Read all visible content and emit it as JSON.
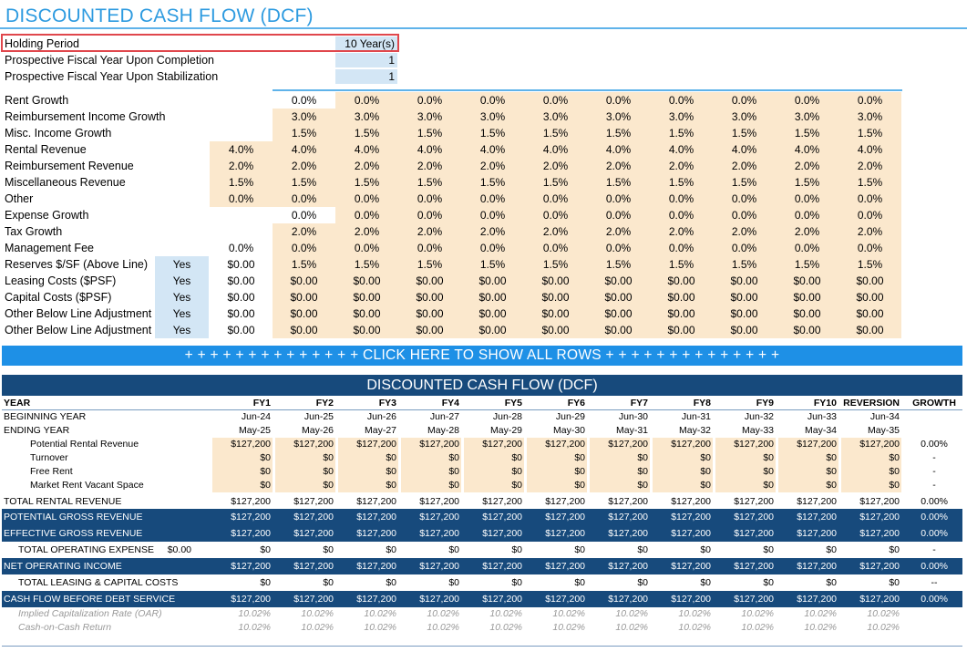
{
  "title": "DISCOUNTED CASH FLOW (DCF)",
  "params": [
    {
      "label": "Holding Period",
      "value": "10 Year(s)"
    },
    {
      "label": "Prospective Fiscal Year Upon Completion",
      "value": "1"
    },
    {
      "label": "Prospective Fiscal Year Upon Stabilization",
      "value": "1"
    }
  ],
  "assumptions": [
    {
      "label": "Rent Growth",
      "flag": "",
      "base": "",
      "vals": [
        "0.0%",
        "0.0%",
        "0.0%",
        "0.0%",
        "0.0%",
        "0.0%",
        "0.0%",
        "0.0%",
        "0.0%",
        "0.0%"
      ]
    },
    {
      "label": "Reimbursement Income Growth",
      "flag": "",
      "base": "",
      "vals": [
        "3.0%",
        "3.0%",
        "3.0%",
        "3.0%",
        "3.0%",
        "3.0%",
        "3.0%",
        "3.0%",
        "3.0%",
        "3.0%"
      ]
    },
    {
      "label": "Misc. Income Growth",
      "flag": "",
      "base": "",
      "vals": [
        "1.5%",
        "1.5%",
        "1.5%",
        "1.5%",
        "1.5%",
        "1.5%",
        "1.5%",
        "1.5%",
        "1.5%",
        "1.5%"
      ]
    },
    {
      "label": "Rental Revenue",
      "flag": "",
      "base": "4.0%",
      "vals": [
        "4.0%",
        "4.0%",
        "4.0%",
        "4.0%",
        "4.0%",
        "4.0%",
        "4.0%",
        "4.0%",
        "4.0%",
        "4.0%"
      ]
    },
    {
      "label": "Reimbursement Revenue",
      "flag": "",
      "base": "2.0%",
      "vals": [
        "2.0%",
        "2.0%",
        "2.0%",
        "2.0%",
        "2.0%",
        "2.0%",
        "2.0%",
        "2.0%",
        "2.0%",
        "2.0%"
      ]
    },
    {
      "label": "Miscellaneous Revenue",
      "flag": "",
      "base": "1.5%",
      "vals": [
        "1.5%",
        "1.5%",
        "1.5%",
        "1.5%",
        "1.5%",
        "1.5%",
        "1.5%",
        "1.5%",
        "1.5%",
        "1.5%"
      ]
    },
    {
      "label": "Other",
      "flag": "",
      "base": "0.0%",
      "vals": [
        "0.0%",
        "0.0%",
        "0.0%",
        "0.0%",
        "0.0%",
        "0.0%",
        "0.0%",
        "0.0%",
        "0.0%",
        "0.0%"
      ]
    },
    {
      "label": "Expense Growth",
      "flag": "",
      "base": "",
      "vals": [
        "0.0%",
        "0.0%",
        "0.0%",
        "0.0%",
        "0.0%",
        "0.0%",
        "0.0%",
        "0.0%",
        "0.0%",
        "0.0%"
      ]
    },
    {
      "label": "Tax Growth",
      "flag": "",
      "base": "",
      "vals": [
        "2.0%",
        "2.0%",
        "2.0%",
        "2.0%",
        "2.0%",
        "2.0%",
        "2.0%",
        "2.0%",
        "2.0%",
        "2.0%"
      ]
    },
    {
      "label": "Management Fee",
      "flag": "",
      "base": "0.0%",
      "vals": [
        "0.0%",
        "0.0%",
        "0.0%",
        "0.0%",
        "0.0%",
        "0.0%",
        "0.0%",
        "0.0%",
        "0.0%",
        "0.0%"
      ]
    },
    {
      "label": "Reserves $/SF (Above Line)",
      "flag": "Yes",
      "base": "$0.00",
      "vals": [
        "1.5%",
        "1.5%",
        "1.5%",
        "1.5%",
        "1.5%",
        "1.5%",
        "1.5%",
        "1.5%",
        "1.5%",
        "1.5%"
      ]
    },
    {
      "label": "Leasing Costs ($PSF)",
      "flag": "Yes",
      "base": "$0.00",
      "vals": [
        "$0.00",
        "$0.00",
        "$0.00",
        "$0.00",
        "$0.00",
        "$0.00",
        "$0.00",
        "$0.00",
        "$0.00",
        "$0.00"
      ]
    },
    {
      "label": "Capital Costs ($PSF)",
      "flag": "Yes",
      "base": "$0.00",
      "vals": [
        "$0.00",
        "$0.00",
        "$0.00",
        "$0.00",
        "$0.00",
        "$0.00",
        "$0.00",
        "$0.00",
        "$0.00",
        "$0.00"
      ]
    },
    {
      "label": "Other Below Line Adjustment",
      "flag": "Yes",
      "base": "$0.00",
      "vals": [
        "$0.00",
        "$0.00",
        "$0.00",
        "$0.00",
        "$0.00",
        "$0.00",
        "$0.00",
        "$0.00",
        "$0.00",
        "$0.00"
      ]
    },
    {
      "label": "Other Below Line Adjustment",
      "flag": "Yes",
      "base": "$0.00",
      "vals": [
        "$0.00",
        "$0.00",
        "$0.00",
        "$0.00",
        "$0.00",
        "$0.00",
        "$0.00",
        "$0.00",
        "$0.00",
        "$0.00"
      ]
    }
  ],
  "banner": "+ + + + + + + + + + + + + + CLICK HERE TO SHOW ALL ROWS + + + + + + + + + + + + + +",
  "dcf": {
    "header": "DISCOUNTED CASH FLOW (DCF)",
    "columns": [
      "FY1",
      "FY2",
      "FY3",
      "FY4",
      "FY5",
      "FY6",
      "FY7",
      "FY8",
      "FY9",
      "FY10",
      "REVERSION",
      "GROWTH"
    ],
    "rows": [
      {
        "label": "YEAR",
        "style": "colhead",
        "extra": "",
        "vals": [
          "FY1",
          "FY2",
          "FY3",
          "FY4",
          "FY5",
          "FY6",
          "FY7",
          "FY8",
          "FY9",
          "FY10",
          "REVERSION"
        ],
        "growth": "GROWTH"
      },
      {
        "label": "BEGINNING YEAR",
        "style": "plain",
        "extra": "",
        "vals": [
          "Jun-24",
          "Jun-25",
          "Jun-26",
          "Jun-27",
          "Jun-28",
          "Jun-29",
          "Jun-30",
          "Jun-31",
          "Jun-32",
          "Jun-33",
          "Jun-34"
        ],
        "growth": ""
      },
      {
        "label": "ENDING YEAR",
        "style": "plain",
        "extra": "",
        "vals": [
          "May-25",
          "May-26",
          "May-27",
          "May-28",
          "May-29",
          "May-30",
          "May-31",
          "May-32",
          "May-33",
          "May-34",
          "May-35"
        ],
        "growth": ""
      },
      {
        "label": "Potential Rental Revenue",
        "style": "sub",
        "extra": "",
        "vals": [
          "$127,200",
          "$127,200",
          "$127,200",
          "$127,200",
          "$127,200",
          "$127,200",
          "$127,200",
          "$127,200",
          "$127,200",
          "$127,200",
          "$127,200"
        ],
        "growth": "0.00%"
      },
      {
        "label": "Turnover",
        "style": "sub",
        "extra": "",
        "vals": [
          "$0",
          "$0",
          "$0",
          "$0",
          "$0",
          "$0",
          "$0",
          "$0",
          "$0",
          "$0",
          "$0"
        ],
        "growth": "-"
      },
      {
        "label": "Free Rent",
        "style": "sub",
        "extra": "",
        "vals": [
          "$0",
          "$0",
          "$0",
          "$0",
          "$0",
          "$0",
          "$0",
          "$0",
          "$0",
          "$0",
          "$0"
        ],
        "growth": "-"
      },
      {
        "label": "Market Rent Vacant Space",
        "style": "sub",
        "extra": "",
        "vals": [
          "$0",
          "$0",
          "$0",
          "$0",
          "$0",
          "$0",
          "$0",
          "$0",
          "$0",
          "$0",
          "$0"
        ],
        "growth": "-"
      },
      {
        "label": "TOTAL RENTAL REVENUE",
        "style": "total",
        "extra": "",
        "vals": [
          "$127,200",
          "$127,200",
          "$127,200",
          "$127,200",
          "$127,200",
          "$127,200",
          "$127,200",
          "$127,200",
          "$127,200",
          "$127,200",
          "$127,200"
        ],
        "growth": "0.00%"
      },
      {
        "label": "POTENTIAL GROSS REVENUE",
        "style": "dark",
        "extra": "",
        "vals": [
          "$127,200",
          "$127,200",
          "$127,200",
          "$127,200",
          "$127,200",
          "$127,200",
          "$127,200",
          "$127,200",
          "$127,200",
          "$127,200",
          "$127,200"
        ],
        "growth": "0.00%"
      },
      {
        "label": "EFFECTIVE GROSS REVENUE",
        "style": "dark",
        "extra": "",
        "vals": [
          "$127,200",
          "$127,200",
          "$127,200",
          "$127,200",
          "$127,200",
          "$127,200",
          "$127,200",
          "$127,200",
          "$127,200",
          "$127,200",
          "$127,200"
        ],
        "growth": "0.00%"
      },
      {
        "label": "TOTAL OPERATING EXPENSE",
        "style": "indent",
        "extra": "$0.00",
        "vals": [
          "$0",
          "$0",
          "$0",
          "$0",
          "$0",
          "$0",
          "$0",
          "$0",
          "$0",
          "$0",
          "$0"
        ],
        "growth": "-"
      },
      {
        "label": "NET OPERATING INCOME",
        "style": "dark",
        "extra": "",
        "vals": [
          "$127,200",
          "$127,200",
          "$127,200",
          "$127,200",
          "$127,200",
          "$127,200",
          "$127,200",
          "$127,200",
          "$127,200",
          "$127,200",
          "$127,200"
        ],
        "growth": "0.00%"
      },
      {
        "label": "TOTAL LEASING & CAPITAL COSTS",
        "style": "indent",
        "extra": "",
        "vals": [
          "$0",
          "$0",
          "$0",
          "$0",
          "$0",
          "$0",
          "$0",
          "$0",
          "$0",
          "$0",
          "$0"
        ],
        "growth": "--"
      },
      {
        "label": "CASH FLOW BEFORE DEBT SERVICE",
        "style": "dark",
        "extra": "",
        "vals": [
          "$127,200",
          "$127,200",
          "$127,200",
          "$127,200",
          "$127,200",
          "$127,200",
          "$127,200",
          "$127,200",
          "$127,200",
          "$127,200",
          "$127,200"
        ],
        "growth": "0.00%"
      },
      {
        "label": "Implied Capitalization Rate (OAR)",
        "style": "ital",
        "extra": "",
        "vals": [
          "10.02%",
          "10.02%",
          "10.02%",
          "10.02%",
          "10.02%",
          "10.02%",
          "10.02%",
          "10.02%",
          "10.02%",
          "10.02%",
          "10.02%"
        ],
        "growth": ""
      },
      {
        "label": "Cash-on-Cash Return",
        "style": "ital",
        "extra": "",
        "vals": [
          "10.02%",
          "10.02%",
          "10.02%",
          "10.02%",
          "10.02%",
          "10.02%",
          "10.02%",
          "10.02%",
          "10.02%",
          "10.02%",
          "10.02%"
        ],
        "growth": ""
      }
    ]
  },
  "colors": {
    "accent": "#2e9be0",
    "navy": "#174a7c",
    "input_beige": "#fbe8cd",
    "input_blue": "#d3e6f5",
    "highlight": "#e0474c"
  }
}
